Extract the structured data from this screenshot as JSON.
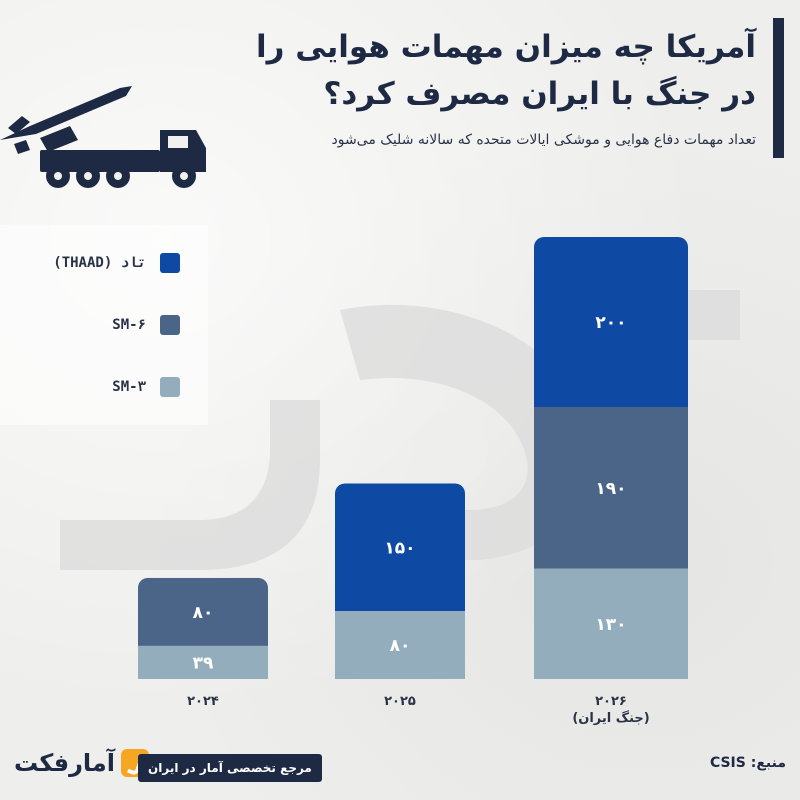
{
  "header": {
    "title": "آمریکا چه میزان مهمات هوایی را در جنگ با ایران مصرف کرد؟",
    "subtitle": "تعداد مهمات دفاع هوایی و موشکی ایالات متحده که سالانه شلیک می‌شود"
  },
  "legend": [
    {
      "label": "تاد (THAAD)",
      "color": "#0e4aa3"
    },
    {
      "label": "SM-۶",
      "color": "#4a6588"
    },
    {
      "label": "SM-۳",
      "color": "#94adbd"
    }
  ],
  "chart_data": {
    "type": "bar",
    "stacked": true,
    "categories": [
      "۲۰۲۴",
      "۲۰۲۵",
      "۲۰۲۶ (جنگ ایران)"
    ],
    "category_lines": [
      [
        "۲۰۲۴"
      ],
      [
        "۲۰۲۵"
      ],
      [
        "۲۰۲۶",
        "(جنگ ایران)"
      ]
    ],
    "series": [
      {
        "name": "SM-۳",
        "color": "#94adbd",
        "values": [
          39,
          80,
          130
        ],
        "labels": [
          "۳۹",
          "۸۰",
          "۱۳۰"
        ]
      },
      {
        "name": "SM-۶",
        "color": "#4a6588",
        "values": [
          80,
          0,
          190
        ],
        "labels": [
          "۸۰",
          "",
          "۱۹۰"
        ]
      },
      {
        "name": "تاد (THAAD)",
        "color": "#0e4aa3",
        "values": [
          0,
          150,
          200
        ],
        "labels": [
          "",
          "۱۵۰",
          "۲۰۰"
        ]
      }
    ],
    "ylim": [
      0,
      520
    ],
    "grid": false,
    "legend_position": "left"
  },
  "footer": {
    "source": "منبع: CSIS",
    "logo_text": "آمارفکت",
    "tagline": "مرجع تخصصی آمار در ایران"
  }
}
